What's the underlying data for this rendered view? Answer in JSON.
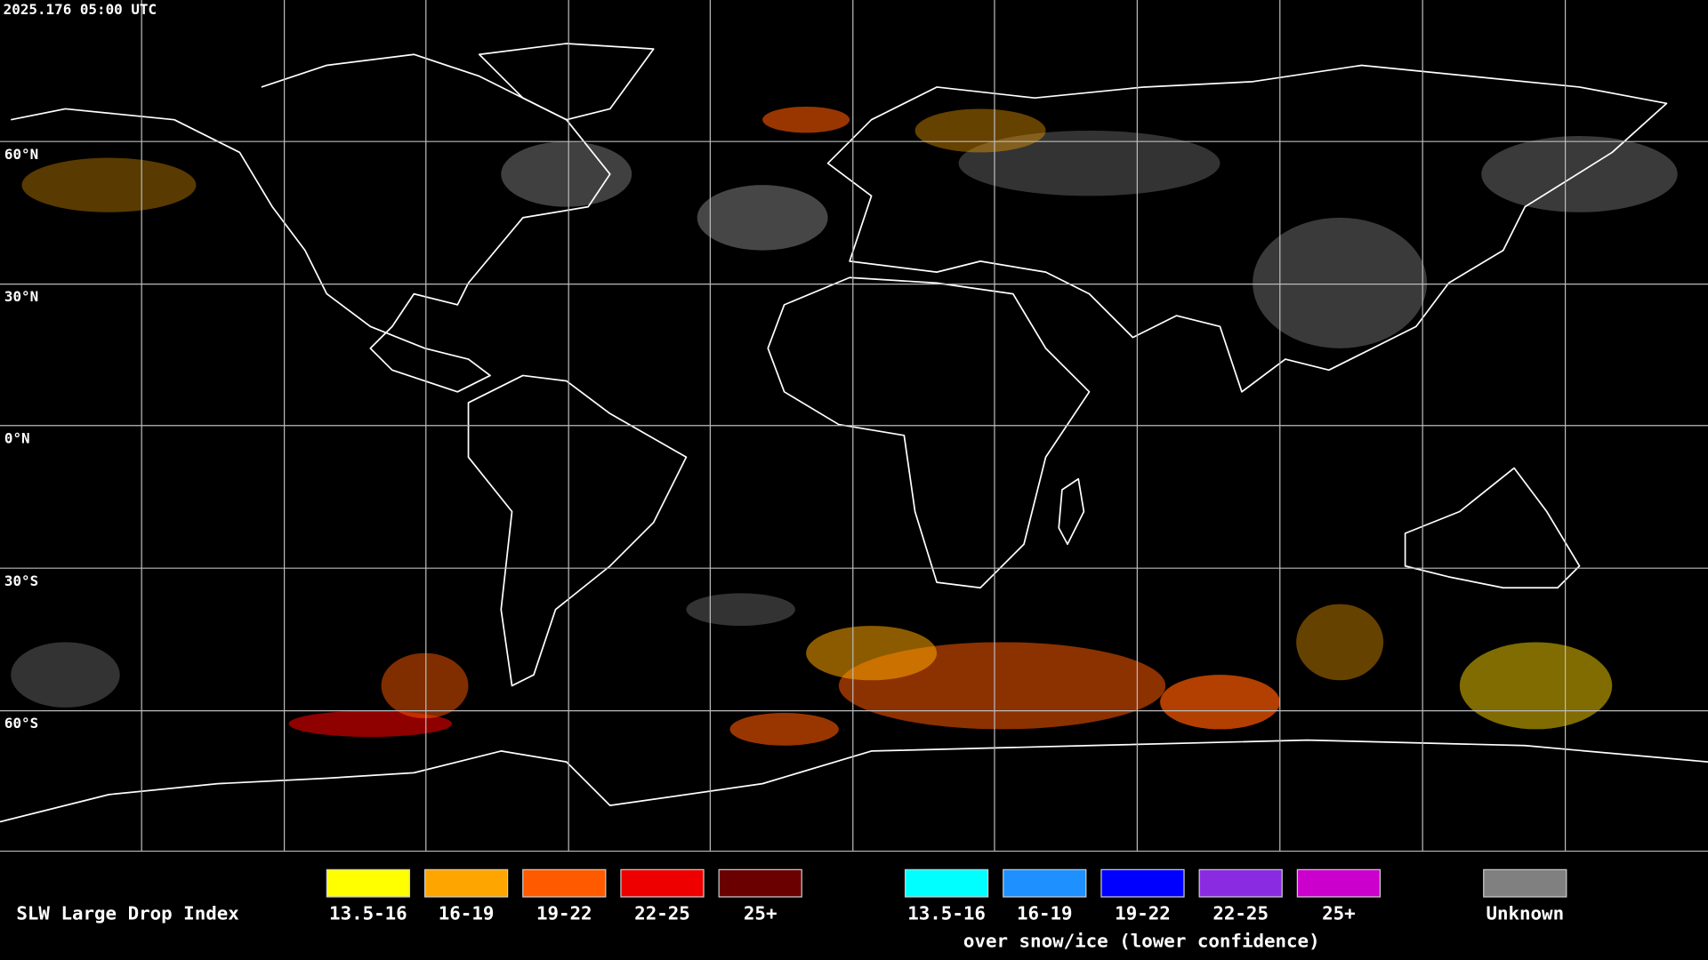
{
  "timestamp": "2025.176 05:00 UTC",
  "latitude_labels": [
    "60°N",
    "30°N",
    "0°N",
    "30°S",
    "60°S"
  ],
  "legend": {
    "title": "SLW Large Drop Index",
    "normal": [
      {
        "label": "13.5-16",
        "color": "#ffff00"
      },
      {
        "label": "16-19",
        "color": "#ffa500"
      },
      {
        "label": "19-22",
        "color": "#ff5a00"
      },
      {
        "label": "22-25",
        "color": "#ee0000"
      },
      {
        "label": "25+",
        "color": "#6a0000"
      }
    ],
    "snow_ice": [
      {
        "label": "13.5-16",
        "color": "#00ffff"
      },
      {
        "label": "16-19",
        "color": "#1e90ff"
      },
      {
        "label": "19-22",
        "color": "#0000ff"
      },
      {
        "label": "22-25",
        "color": "#8a2be2"
      },
      {
        "label": "25+",
        "color": "#cc00cc"
      }
    ],
    "snow_ice_note": "over snow/ice (lower confidence)",
    "unknown": {
      "label": "Unknown",
      "color": "#808080"
    }
  }
}
